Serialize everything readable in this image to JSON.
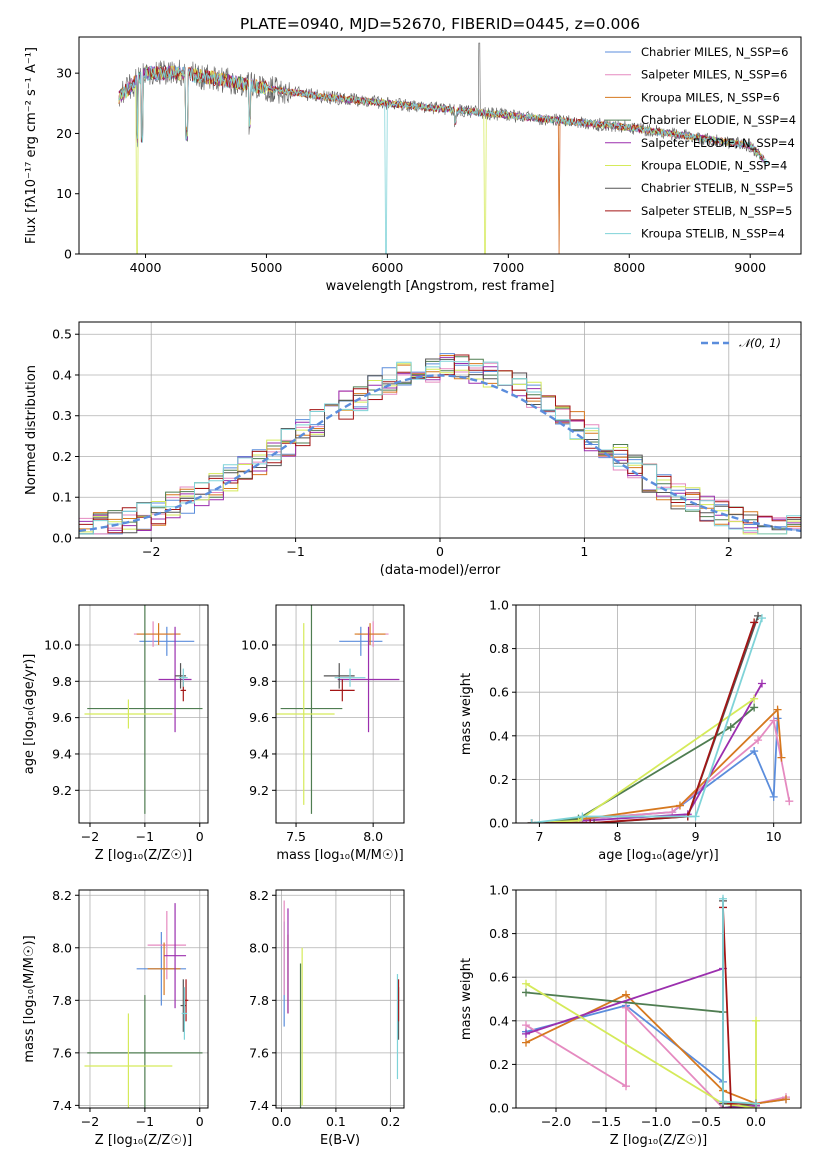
{
  "colors": [
    "#5b8ddc",
    "#e58ac0",
    "#d6781f",
    "#4f7d51",
    "#9b2fae",
    "#d5ea5a",
    "#555555",
    "#a31515",
    "#7fd3d8"
  ],
  "chart_data": [
    {
      "id": "spectrum",
      "type": "line",
      "title": "PLATE=0940, MJD=52670, FIBERID=0445, z=0.006",
      "xlabel": "wavelength [Angstrom, rest frame]",
      "ylabel": "Flux [fλ10⁻¹⁷ erg cm⁻² s⁻¹ A⁻¹]",
      "xlim": [
        3450,
        9420
      ],
      "ylim": [
        0,
        36
      ],
      "xticks": [
        4000,
        5000,
        6000,
        7000,
        8000,
        9000
      ],
      "yticks": [
        0,
        10,
        20,
        30
      ],
      "grid": false,
      "legend_placement": "top-right",
      "series": [
        {
          "name": "Chabrier MILES, N_SSP=6"
        },
        {
          "name": "Salpeter MILES, N_SSP=6"
        },
        {
          "name": "Kroupa MILES, N_SSP=6"
        },
        {
          "name": "Chabrier ELODIE, N_SSP=4"
        },
        {
          "name": "Salpeter ELODIE, N_SSP=4"
        },
        {
          "name": "Kroupa ELODIE, N_SSP=4"
        },
        {
          "name": "Chabrier STELIB, N_SSP=5"
        },
        {
          "name": "Salpeter STELIB, N_SSP=5"
        },
        {
          "name": "Kroupa STELIB, N_SSP=4"
        }
      ],
      "continuum": {
        "x": [
          3780,
          4000,
          4300,
          4600,
          5000,
          5500,
          6000,
          6500,
          7000,
          7500,
          8000,
          8500,
          9000,
          9150
        ],
        "y": [
          26,
          30,
          30,
          29,
          27.5,
          26,
          25,
          24,
          23,
          22,
          21,
          19.5,
          18,
          15
        ]
      }
    },
    {
      "id": "residuals",
      "type": "line",
      "xlabel": "(data-model)/error",
      "ylabel": "Normed distribution",
      "xlim": [
        -2.5,
        2.5
      ],
      "ylim": [
        0,
        0.53
      ],
      "xticks": [
        -2,
        -1,
        0,
        1,
        2
      ],
      "yticks": [
        0.0,
        0.1,
        0.2,
        0.3,
        0.4,
        0.5
      ],
      "grid": true,
      "legend_placement": "top-right",
      "legend": "𝒩(0, 1)"
    },
    {
      "id": "age-vs-z",
      "type": "scatter",
      "xlabel": "Z [log₁₀(Z/Z☉)]",
      "ylabel": "age  [log₁₀(age/yr)]",
      "xlim": [
        -2.2,
        0.15
      ],
      "ylim": [
        9.02,
        10.22
      ],
      "xticks": [
        -2,
        -1,
        0
      ],
      "yticks": [
        9.2,
        9.4,
        9.6,
        9.8,
        10.0
      ],
      "grid": true,
      "points": [
        {
          "s": 0,
          "x": -0.6,
          "y": 10.02,
          "xerr": 0.5,
          "yerr": 0.08
        },
        {
          "s": 1,
          "x": -0.85,
          "y": 10.06,
          "xerr": 0.35,
          "yerr": 0.07
        },
        {
          "s": 2,
          "x": -0.75,
          "y": 10.06,
          "xerr": 0.4,
          "yerr": 0.06
        },
        {
          "s": 3,
          "x": -1.0,
          "y": 9.65,
          "xerr": 1.05,
          "yerr": 0.58
        },
        {
          "s": 4,
          "x": -0.45,
          "y": 9.81,
          "xerr": 0.3,
          "yerr": 0.29
        },
        {
          "s": 5,
          "x": -1.3,
          "y": 9.62,
          "xerr": 0.8,
          "yerr": 0.08
        },
        {
          "s": 6,
          "x": -0.35,
          "y": 9.83,
          "xerr": 0.1,
          "yerr": 0.07
        },
        {
          "s": 7,
          "x": -0.3,
          "y": 9.75,
          "xerr": 0.05,
          "yerr": 0.06
        },
        {
          "s": 8,
          "x": -0.3,
          "y": 9.82,
          "xerr": 0.08,
          "yerr": 0.05
        }
      ]
    },
    {
      "id": "age-vs-mass",
      "type": "scatter",
      "xlabel": "mass [log₁₀(M/M☉)]",
      "ylabel": "",
      "xlim": [
        7.37,
        8.2
      ],
      "ylim": [
        9.02,
        10.22
      ],
      "xticks": [
        7.5,
        8.0
      ],
      "yticks": [
        9.2,
        9.4,
        9.6,
        9.8,
        10.0
      ],
      "grid": true,
      "points": [
        {
          "s": 0,
          "x": 7.92,
          "y": 10.02,
          "xerr": 0.14,
          "yerr": 0.08
        },
        {
          "s": 1,
          "x": 8.0,
          "y": 10.06,
          "xerr": 0.1,
          "yerr": 0.07
        },
        {
          "s": 2,
          "x": 7.98,
          "y": 10.06,
          "xerr": 0.1,
          "yerr": 0.06
        },
        {
          "s": 3,
          "x": 7.6,
          "y": 9.65,
          "xerr": 0.2,
          "yerr": 0.58
        },
        {
          "s": 4,
          "x": 7.97,
          "y": 9.81,
          "xerr": 0.2,
          "yerr": 0.29
        },
        {
          "s": 5,
          "x": 7.55,
          "y": 9.62,
          "xerr": 0.2,
          "yerr": 0.5
        },
        {
          "s": 6,
          "x": 7.78,
          "y": 9.83,
          "xerr": 0.1,
          "yerr": 0.07
        },
        {
          "s": 7,
          "x": 7.8,
          "y": 9.75,
          "xerr": 0.08,
          "yerr": 0.06
        },
        {
          "s": 8,
          "x": 7.85,
          "y": 9.82,
          "xerr": 0.1,
          "yerr": 0.05
        }
      ]
    },
    {
      "id": "weight-vs-age",
      "type": "line",
      "xlabel": "age  [log₁₀(age/yr)]",
      "ylabel": "mass weight",
      "xlim": [
        6.7,
        10.35
      ],
      "ylim": [
        0.0,
        1.0
      ],
      "xticks": [
        7,
        8,
        9,
        10
      ],
      "yticks": [
        0.0,
        0.2,
        0.4,
        0.6,
        0.8,
        1.0
      ],
      "grid": true,
      "series": [
        {
          "s": 0,
          "x": [
            6.9,
            7.6,
            8.7,
            9.75,
            10.0,
            10.05
          ],
          "y": [
            0.0,
            0.02,
            0.05,
            0.33,
            0.12,
            0.48
          ]
        },
        {
          "s": 1,
          "x": [
            6.9,
            7.6,
            8.7,
            9.8,
            10.0,
            10.2
          ],
          "y": [
            0.0,
            0.02,
            0.05,
            0.38,
            0.47,
            0.1
          ]
        },
        {
          "s": 2,
          "x": [
            6.9,
            7.6,
            8.8,
            10.05,
            10.1
          ],
          "y": [
            0.0,
            0.02,
            0.08,
            0.52,
            0.3
          ]
        },
        {
          "s": 3,
          "x": [
            6.9,
            7.5,
            9.45,
            9.75
          ],
          "y": [
            0.0,
            0.02,
            0.44,
            0.53
          ]
        },
        {
          "s": 4,
          "x": [
            6.9,
            7.55,
            8.9,
            9.85
          ],
          "y": [
            0.0,
            0.01,
            0.04,
            0.64
          ]
        },
        {
          "s": 5,
          "x": [
            6.9,
            7.5,
            9.75
          ],
          "y": [
            0.0,
            0.01,
            0.57
          ]
        },
        {
          "s": 6,
          "x": [
            6.9,
            7.7,
            8.9,
            9.8
          ],
          "y": [
            0.0,
            0.0,
            0.03,
            0.95
          ]
        },
        {
          "s": 7,
          "x": [
            6.9,
            7.65,
            8.9,
            9.75
          ],
          "y": [
            0.0,
            0.0,
            0.03,
            0.92
          ]
        },
        {
          "s": 8,
          "x": [
            6.9,
            7.55,
            9.0,
            9.85
          ],
          "y": [
            0.0,
            0.03,
            0.03,
            0.94
          ]
        }
      ]
    },
    {
      "id": "mass-vs-z",
      "type": "scatter",
      "xlabel": "Z [log₁₀(Z/Z☉)]",
      "ylabel": "mass [log₁₀(M/M☉)]",
      "xlim": [
        -2.2,
        0.15
      ],
      "ylim": [
        7.39,
        8.22
      ],
      "xticks": [
        -2,
        -1,
        0
      ],
      "yticks": [
        7.4,
        7.6,
        7.8,
        8.0,
        8.2
      ],
      "grid": true,
      "points": [
        {
          "s": 0,
          "x": -0.7,
          "y": 7.92,
          "xerr": 0.45,
          "yerr": 0.14
        },
        {
          "s": 1,
          "x": -0.6,
          "y": 8.01,
          "xerr": 0.35,
          "yerr": 0.13
        },
        {
          "s": 2,
          "x": -0.65,
          "y": 7.92,
          "xerr": 0.3,
          "yerr": 0.1
        },
        {
          "s": 3,
          "x": -1.0,
          "y": 7.6,
          "xerr": 1.05,
          "yerr": 0.22
        },
        {
          "s": 4,
          "x": -0.45,
          "y": 7.97,
          "xerr": 0.2,
          "yerr": 0.2
        },
        {
          "s": 5,
          "x": -1.3,
          "y": 7.55,
          "xerr": 0.8,
          "yerr": 0.2
        },
        {
          "s": 6,
          "x": -0.3,
          "y": 7.78,
          "xerr": 0.05,
          "yerr": 0.1
        },
        {
          "s": 7,
          "x": -0.25,
          "y": 7.8,
          "xerr": 0.04,
          "yerr": 0.08
        },
        {
          "s": 8,
          "x": -0.28,
          "y": 7.75,
          "xerr": 0.05,
          "yerr": 0.1
        }
      ]
    },
    {
      "id": "mass-vs-ebv",
      "type": "scatter",
      "xlabel": "E(B-V)",
      "ylabel": "",
      "xlim": [
        -0.01,
        0.225
      ],
      "ylim": [
        7.39,
        8.22
      ],
      "xticks": [
        0.0,
        0.1,
        0.2
      ],
      "yticks": [
        7.4,
        7.6,
        7.8,
        8.0,
        8.2
      ],
      "grid": true,
      "points": [
        {
          "s": 0,
          "x": 0.005,
          "y": 7.9,
          "xerr": 0,
          "yerr": 0.2
        },
        {
          "s": 1,
          "x": 0.005,
          "y": 8.0,
          "xerr": 0,
          "yerr": 0.18
        },
        {
          "s": 2,
          "x": 0.012,
          "y": 7.9,
          "xerr": 0,
          "yerr": 0.15
        },
        {
          "s": 3,
          "x": 0.035,
          "y": 7.6,
          "xerr": 0,
          "yerr": 0.34
        },
        {
          "s": 4,
          "x": 0.012,
          "y": 7.95,
          "xerr": 0,
          "yerr": 0.2
        },
        {
          "s": 5,
          "x": 0.038,
          "y": 7.7,
          "xerr": 0,
          "yerr": 0.3
        },
        {
          "s": 6,
          "x": 0.215,
          "y": 7.75,
          "xerr": 0,
          "yerr": 0.1
        },
        {
          "s": 7,
          "x": 0.215,
          "y": 7.8,
          "xerr": 0,
          "yerr": 0.08
        },
        {
          "s": 8,
          "x": 0.213,
          "y": 7.7,
          "xerr": 0,
          "yerr": 0.2
        }
      ]
    },
    {
      "id": "weight-vs-z",
      "type": "line",
      "xlabel": "Z [log₁₀(Z/Z☉)]",
      "ylabel": "mass weight",
      "xlim": [
        -2.4,
        0.45
      ],
      "ylim": [
        0.0,
        1.0
      ],
      "xticks": [
        -2.0,
        -1.5,
        -1.0,
        -0.5,
        0.0
      ],
      "yticks": [
        0.0,
        0.2,
        0.4,
        0.6,
        0.8,
        1.0
      ],
      "grid": true,
      "series": [
        {
          "s": 0,
          "x": [
            -2.3,
            -1.3,
            -0.33,
            -0.33,
            0.0,
            0.3
          ],
          "y": [
            0.35,
            0.47,
            0.12,
            0.0,
            0.02,
            0.04
          ]
        },
        {
          "s": 1,
          "x": [
            -2.3,
            -1.3,
            -1.3,
            -0.33,
            0.0,
            0.3
          ],
          "y": [
            0.38,
            0.1,
            0.46,
            0.0,
            0.02,
            0.05
          ]
        },
        {
          "s": 2,
          "x": [
            -2.3,
            -1.3,
            -0.33,
            0.0,
            0.3
          ],
          "y": [
            0.3,
            0.52,
            0.08,
            0.02,
            0.04
          ]
        },
        {
          "s": 3,
          "x": [
            -2.3,
            -0.33,
            -0.33,
            0.0
          ],
          "y": [
            0.53,
            0.44,
            0.0,
            0.02
          ]
        },
        {
          "s": 4,
          "x": [
            -2.3,
            -0.33,
            -0.33,
            0.0
          ],
          "y": [
            0.34,
            0.64,
            0.0,
            0.01
          ]
        },
        {
          "s": 5,
          "x": [
            -2.3,
            -0.33,
            0.0,
            0.0
          ],
          "y": [
            0.57,
            0.02,
            0.0,
            0.4
          ]
        },
        {
          "s": 6,
          "x": [
            -0.33,
            -0.33,
            0.0
          ],
          "y": [
            0.95,
            0.02,
            0.02
          ]
        },
        {
          "s": 7,
          "x": [
            -0.33,
            -0.25,
            0.0
          ],
          "y": [
            0.92,
            0.02,
            0.02
          ]
        },
        {
          "s": 8,
          "x": [
            -0.33,
            -0.33,
            0.0
          ],
          "y": [
            0.96,
            0.03,
            0.02
          ]
        }
      ]
    }
  ]
}
